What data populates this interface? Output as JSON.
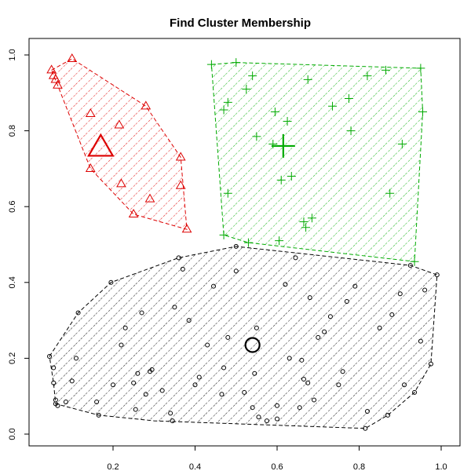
{
  "chart_data": {
    "type": "scatter",
    "title": "Find Cluster Membership",
    "xlabel": "",
    "ylabel": "",
    "xlim": [
      0.04,
      1.0
    ],
    "ylim": [
      0.0,
      1.0
    ],
    "x_ticks": [
      "0.2",
      "0.4",
      "0.6",
      "0.8",
      "1.0"
    ],
    "x_tick_values": [
      0.2,
      0.4,
      0.6,
      0.8,
      1.0
    ],
    "y_ticks": [
      "0.0",
      "0.2",
      "0.4",
      "0.6",
      "0.8",
      "1.0"
    ],
    "y_tick_values": [
      0.0,
      0.2,
      0.4,
      0.6,
      0.8,
      1.0
    ],
    "grid": false,
    "hatched_hulls": true,
    "clusters": [
      {
        "color": "#dd0000",
        "marker": "triangle",
        "center": [
          0.17,
          0.755
        ],
        "hull": [
          [
            0.05,
            0.96
          ],
          [
            0.1,
            0.99
          ],
          [
            0.28,
            0.865
          ],
          [
            0.365,
            0.73
          ],
          [
            0.38,
            0.54
          ],
          [
            0.25,
            0.58
          ],
          [
            0.145,
            0.7
          ],
          [
            0.065,
            0.92
          ]
        ],
        "points": [
          [
            0.05,
            0.96
          ],
          [
            0.055,
            0.945
          ],
          [
            0.06,
            0.935
          ],
          [
            0.065,
            0.92
          ],
          [
            0.1,
            0.99
          ],
          [
            0.145,
            0.845
          ],
          [
            0.215,
            0.815
          ],
          [
            0.28,
            0.865
          ],
          [
            0.365,
            0.73
          ],
          [
            0.145,
            0.7
          ],
          [
            0.22,
            0.66
          ],
          [
            0.365,
            0.655
          ],
          [
            0.29,
            0.62
          ],
          [
            0.25,
            0.58
          ],
          [
            0.38,
            0.54
          ]
        ]
      },
      {
        "color": "#00aa00",
        "marker": "plus",
        "center": [
          0.615,
          0.76
        ],
        "hull": [
          [
            0.44,
            0.975
          ],
          [
            0.5,
            0.98
          ],
          [
            0.95,
            0.965
          ],
          [
            0.955,
            0.85
          ],
          [
            0.935,
            0.455
          ],
          [
            0.53,
            0.505
          ],
          [
            0.47,
            0.525
          ]
        ],
        "points": [
          [
            0.44,
            0.975
          ],
          [
            0.5,
            0.98
          ],
          [
            0.95,
            0.965
          ],
          [
            0.865,
            0.96
          ],
          [
            0.82,
            0.945
          ],
          [
            0.54,
            0.945
          ],
          [
            0.675,
            0.935
          ],
          [
            0.525,
            0.91
          ],
          [
            0.48,
            0.875
          ],
          [
            0.47,
            0.855
          ],
          [
            0.595,
            0.85
          ],
          [
            0.625,
            0.825
          ],
          [
            0.775,
            0.885
          ],
          [
            0.735,
            0.865
          ],
          [
            0.955,
            0.85
          ],
          [
            0.78,
            0.8
          ],
          [
            0.55,
            0.785
          ],
          [
            0.59,
            0.765
          ],
          [
            0.905,
            0.765
          ],
          [
            0.635,
            0.68
          ],
          [
            0.61,
            0.67
          ],
          [
            0.48,
            0.635
          ],
          [
            0.875,
            0.635
          ],
          [
            0.685,
            0.57
          ],
          [
            0.665,
            0.56
          ],
          [
            0.67,
            0.545
          ],
          [
            0.47,
            0.525
          ],
          [
            0.53,
            0.505
          ],
          [
            0.605,
            0.51
          ],
          [
            0.935,
            0.455
          ]
        ]
      },
      {
        "color": "#000000",
        "marker": "circle",
        "center": [
          0.54,
          0.235
        ],
        "hull": [
          [
            0.045,
            0.205
          ],
          [
            0.115,
            0.32
          ],
          [
            0.195,
            0.4
          ],
          [
            0.36,
            0.465
          ],
          [
            0.5,
            0.495
          ],
          [
            0.925,
            0.445
          ],
          [
            0.99,
            0.42
          ],
          [
            0.975,
            0.185
          ],
          [
            0.935,
            0.11
          ],
          [
            0.87,
            0.05
          ],
          [
            0.815,
            0.015
          ],
          [
            0.3,
            0.035
          ],
          [
            0.165,
            0.05
          ],
          [
            0.06,
            0.08
          ],
          [
            0.055,
            0.135
          ]
        ],
        "points": [
          [
            0.045,
            0.205
          ],
          [
            0.055,
            0.175
          ],
          [
            0.055,
            0.135
          ],
          [
            0.06,
            0.09
          ],
          [
            0.06,
            0.08
          ],
          [
            0.065,
            0.075
          ],
          [
            0.085,
            0.085
          ],
          [
            0.1,
            0.14
          ],
          [
            0.11,
            0.2
          ],
          [
            0.115,
            0.32
          ],
          [
            0.165,
            0.05
          ],
          [
            0.16,
            0.085
          ],
          [
            0.195,
            0.4
          ],
          [
            0.22,
            0.235
          ],
          [
            0.255,
            0.065
          ],
          [
            0.25,
            0.135
          ],
          [
            0.26,
            0.16
          ],
          [
            0.27,
            0.32
          ],
          [
            0.28,
            0.105
          ],
          [
            0.29,
            0.165
          ],
          [
            0.295,
            0.17
          ],
          [
            0.32,
            0.115
          ],
          [
            0.345,
            0.035
          ],
          [
            0.35,
            0.335
          ],
          [
            0.36,
            0.465
          ],
          [
            0.37,
            0.435
          ],
          [
            0.385,
            0.3
          ],
          [
            0.4,
            0.13
          ],
          [
            0.41,
            0.15
          ],
          [
            0.43,
            0.235
          ],
          [
            0.445,
            0.39
          ],
          [
            0.465,
            0.105
          ],
          [
            0.47,
            0.175
          ],
          [
            0.48,
            0.255
          ],
          [
            0.5,
            0.495
          ],
          [
            0.5,
            0.43
          ],
          [
            0.52,
            0.11
          ],
          [
            0.54,
            0.07
          ],
          [
            0.545,
            0.16
          ],
          [
            0.55,
            0.28
          ],
          [
            0.575,
            0.035
          ],
          [
            0.6,
            0.04
          ],
          [
            0.62,
            0.395
          ],
          [
            0.63,
            0.2
          ],
          [
            0.645,
            0.465
          ],
          [
            0.655,
            0.07
          ],
          [
            0.66,
            0.195
          ],
          [
            0.665,
            0.145
          ],
          [
            0.675,
            0.135
          ],
          [
            0.68,
            0.36
          ],
          [
            0.69,
            0.09
          ],
          [
            0.7,
            0.255
          ],
          [
            0.715,
            0.27
          ],
          [
            0.73,
            0.31
          ],
          [
            0.75,
            0.13
          ],
          [
            0.76,
            0.165
          ],
          [
            0.77,
            0.35
          ],
          [
            0.79,
            0.39
          ],
          [
            0.815,
            0.015
          ],
          [
            0.82,
            0.06
          ],
          [
            0.85,
            0.28
          ],
          [
            0.87,
            0.05
          ],
          [
            0.88,
            0.315
          ],
          [
            0.9,
            0.37
          ],
          [
            0.91,
            0.13
          ],
          [
            0.925,
            0.445
          ],
          [
            0.935,
            0.11
          ],
          [
            0.95,
            0.245
          ],
          [
            0.96,
            0.38
          ],
          [
            0.975,
            0.185
          ],
          [
            0.99,
            0.42
          ],
          [
            0.555,
            0.045
          ],
          [
            0.6,
            0.075
          ],
          [
            0.34,
            0.055
          ],
          [
            0.23,
            0.28
          ],
          [
            0.2,
            0.13
          ]
        ]
      }
    ]
  }
}
